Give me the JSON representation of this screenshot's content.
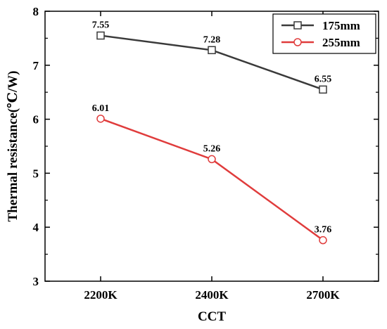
{
  "chart_data": {
    "type": "line",
    "categories": [
      "2200K",
      "2400K",
      "2700K"
    ],
    "series": [
      {
        "name": "175mm",
        "values": [
          7.55,
          7.28,
          6.55
        ],
        "labels": [
          "7.55",
          "7.28",
          "6.55"
        ],
        "color": "#3a3a3a",
        "marker": "square"
      },
      {
        "name": "255mm",
        "values": [
          6.01,
          5.26,
          3.76
        ],
        "labels": [
          "6.01",
          "5.26",
          "3.76"
        ],
        "color": "#e03c3c",
        "marker": "circle"
      }
    ],
    "xlabel": "CCT",
    "ylabel": "Thermal resistance(℃/W)",
    "ylim": [
      3,
      8
    ],
    "yticks": [
      "3",
      "4",
      "5",
      "6",
      "7",
      "8"
    ],
    "legend_position": "top-right",
    "grid": false
  }
}
